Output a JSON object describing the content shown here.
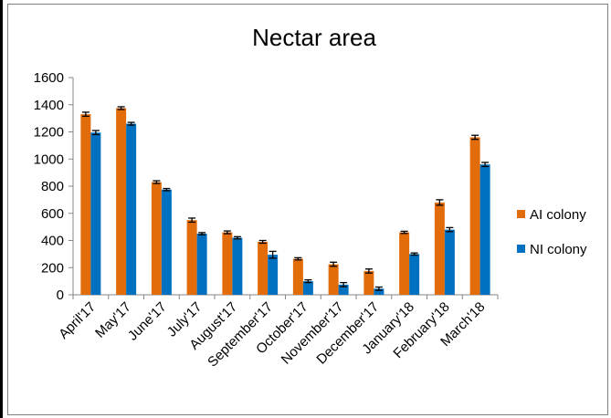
{
  "chart_data": {
    "type": "bar",
    "title": "Nectar area",
    "xlabel": "",
    "ylabel": "",
    "ylim": [
      0,
      1600
    ],
    "yticks": [
      0,
      200,
      400,
      600,
      800,
      1000,
      1200,
      1400,
      1600
    ],
    "grid": false,
    "legend_position": "right",
    "categories": [
      "April'17",
      "May'17",
      "June'17",
      "July'17",
      "August'17",
      "September'17",
      "October'17",
      "November'17",
      "December'17",
      "January'18",
      "February'18",
      "March'18"
    ],
    "series": [
      {
        "name": "AI colony",
        "color": "#e36c0a",
        "values": [
          1330,
          1375,
          830,
          550,
          460,
          390,
          265,
          225,
          175,
          460,
          680,
          1160
        ],
        "errors": [
          15,
          10,
          10,
          15,
          10,
          10,
          8,
          15,
          15,
          8,
          20,
          15
        ]
      },
      {
        "name": "NI colony",
        "color": "#0070c0",
        "values": [
          1195,
          1260,
          775,
          450,
          420,
          295,
          100,
          75,
          45,
          300,
          480,
          960
        ],
        "errors": [
          15,
          10,
          8,
          8,
          8,
          25,
          10,
          15,
          12,
          8,
          15,
          15
        ]
      }
    ]
  }
}
